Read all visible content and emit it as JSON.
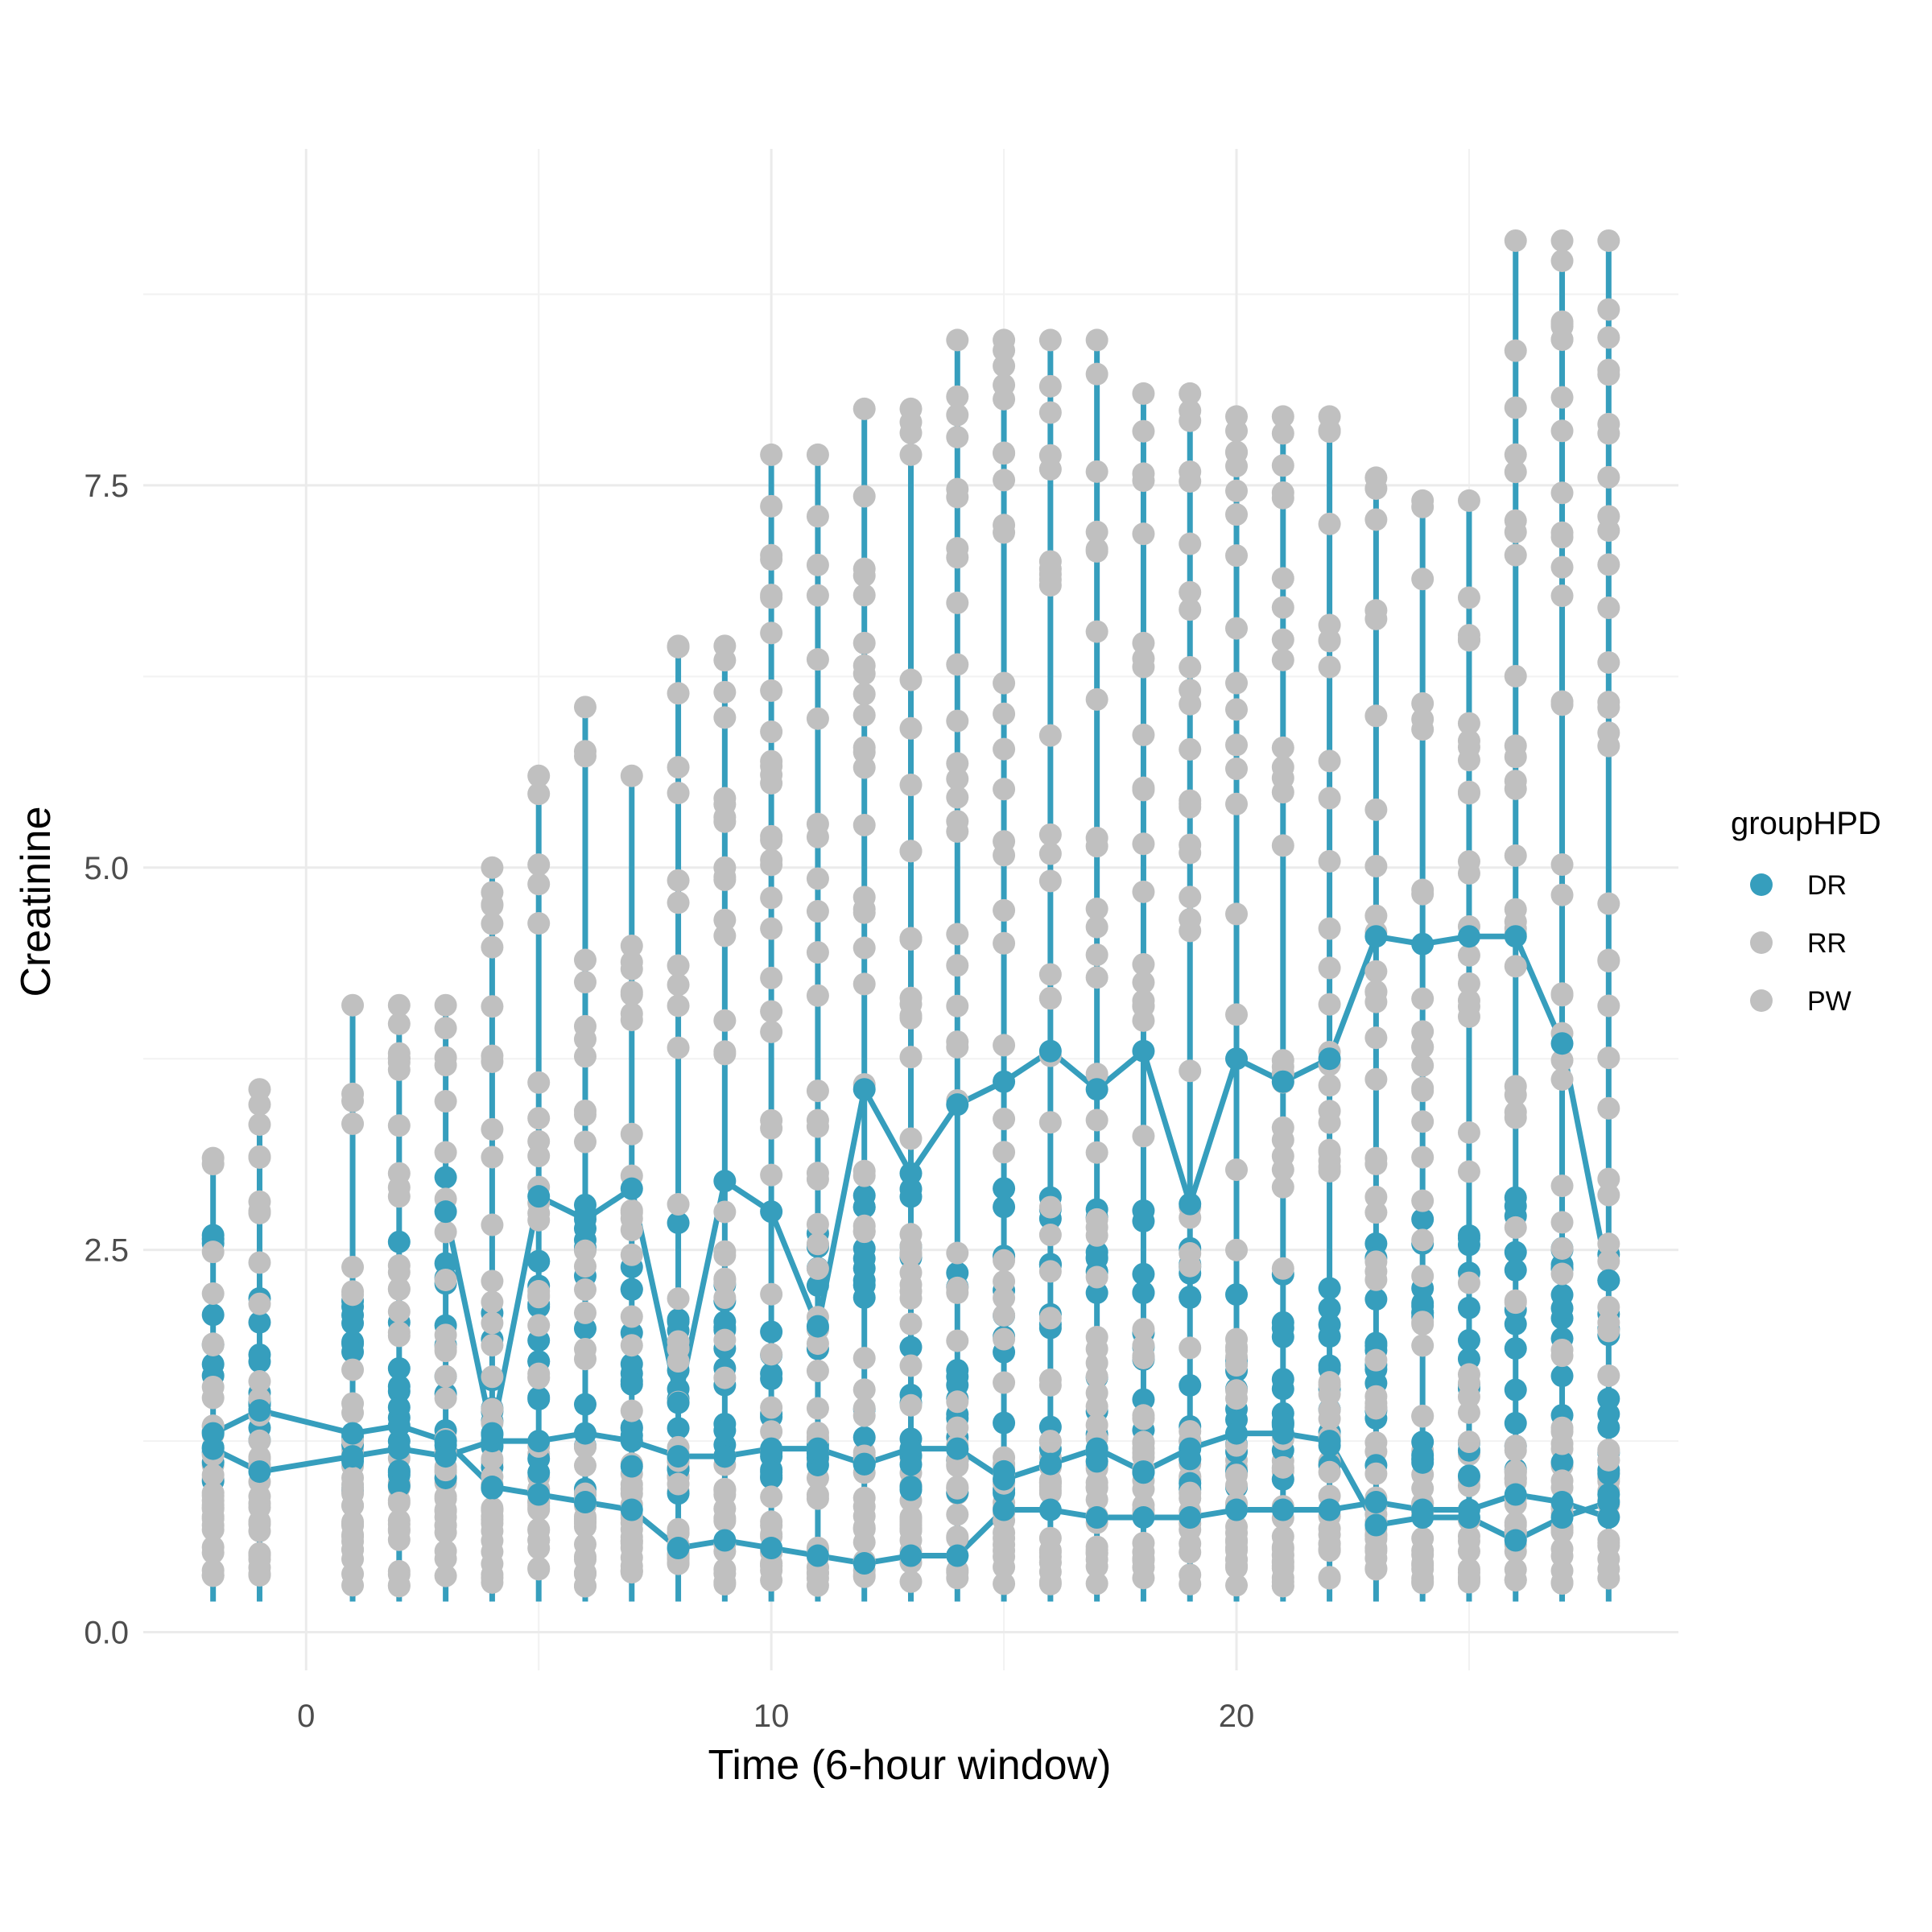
{
  "chart_data": {
    "type": "scatter",
    "xlabel": "Time (6-hour window)",
    "ylabel": "Creatinine",
    "xlim": [
      -3.5,
      29.5
    ],
    "ylim": [
      -0.25,
      9.7
    ],
    "x_ticks": [
      0,
      10,
      20
    ],
    "y_ticks": [
      0.0,
      2.5,
      5.0,
      7.5
    ],
    "y_tick_labels": [
      "0.0",
      "2.5",
      "5.0",
      "7.5"
    ],
    "grid": true,
    "legend": {
      "title": "groupHPD",
      "position": "right",
      "entries": [
        {
          "label": "DR",
          "color": "#369EBD"
        },
        {
          "label": "RR",
          "color": "#C0C0C0"
        },
        {
          "label": "PW",
          "color": "#C0C0C0"
        }
      ]
    },
    "colors": {
      "DR": "#369EBD",
      "RR": "#C0C0C0",
      "PW": "#C0C0C0"
    },
    "time_points": [
      -2,
      -1,
      1,
      2,
      3,
      4,
      5,
      6,
      7,
      8,
      9,
      10,
      11,
      12,
      13,
      14,
      15,
      16,
      17,
      18,
      19,
      20,
      21,
      22,
      23,
      24,
      25,
      26,
      27,
      28
    ],
    "column_max": [
      {
        "x": -2,
        "y": 3.1
      },
      {
        "x": -1,
        "y": 3.55
      },
      {
        "x": 1,
        "y": 4.1
      },
      {
        "x": 2,
        "y": 4.1
      },
      {
        "x": 3,
        "y": 4.1
      },
      {
        "x": 4,
        "y": 5.0
      },
      {
        "x": 5,
        "y": 5.6
      },
      {
        "x": 6,
        "y": 6.05
      },
      {
        "x": 7,
        "y": 5.6
      },
      {
        "x": 8,
        "y": 6.45
      },
      {
        "x": 9,
        "y": 6.45
      },
      {
        "x": 10,
        "y": 7.7
      },
      {
        "x": 11,
        "y": 7.7
      },
      {
        "x": 12,
        "y": 8.0
      },
      {
        "x": 13,
        "y": 8.0
      },
      {
        "x": 14,
        "y": 8.45
      },
      {
        "x": 15,
        "y": 8.45
      },
      {
        "x": 16,
        "y": 8.45
      },
      {
        "x": 17,
        "y": 8.45
      },
      {
        "x": 18,
        "y": 8.1
      },
      {
        "x": 19,
        "y": 8.1
      },
      {
        "x": 20,
        "y": 7.95
      },
      {
        "x": 21,
        "y": 7.95
      },
      {
        "x": 22,
        "y": 7.95
      },
      {
        "x": 23,
        "y": 7.55
      },
      {
        "x": 24,
        "y": 7.4
      },
      {
        "x": 25,
        "y": 7.4
      },
      {
        "x": 26,
        "y": 9.1
      },
      {
        "x": 27,
        "y": 9.1
      },
      {
        "x": 28,
        "y": 9.1
      }
    ],
    "column_min": 0.2,
    "series": [
      {
        "name": "DR",
        "x": [
          -2,
          -1,
          1,
          2,
          3,
          4,
          5,
          6,
          7,
          8,
          9,
          10,
          11,
          12,
          13,
          14,
          15,
          16,
          17,
          18,
          19,
          20,
          21,
          22,
          23,
          24,
          25,
          26,
          27,
          28
        ],
        "y": [
          1.3,
          1.45,
          1.3,
          1.35,
          1.25,
          0.95,
          0.9,
          0.85,
          0.8,
          0.55,
          0.6,
          0.55,
          0.5,
          0.45,
          0.5,
          0.5,
          0.8,
          0.8,
          0.75,
          0.75,
          0.75,
          0.8,
          0.8,
          0.8,
          0.85,
          0.8,
          0.8,
          0.9,
          0.85,
          0.75
        ]
      },
      {
        "name": "DR",
        "x": [
          -2,
          -1,
          1,
          2,
          3,
          4,
          5,
          6,
          7,
          8,
          9,
          10,
          11,
          12,
          13,
          14,
          15,
          16,
          17,
          18,
          19,
          20,
          21,
          22,
          23,
          24,
          25,
          26,
          27,
          28
        ],
        "y": [
          1.2,
          1.05,
          1.15,
          1.2,
          1.15,
          1.25,
          1.25,
          1.3,
          1.25,
          1.15,
          1.15,
          1.2,
          1.2,
          1.1,
          1.2,
          1.2,
          1.0,
          1.1,
          1.2,
          1.05,
          1.2,
          1.3,
          1.3,
          1.25,
          0.7,
          0.75,
          0.75,
          0.6,
          0.75,
          0.85
        ]
      },
      {
        "name": "DR",
        "x": [
          3,
          4,
          5,
          6,
          7,
          8,
          9,
          10,
          11,
          12,
          13,
          14,
          15,
          16,
          17,
          18,
          19,
          20,
          21,
          22,
          23,
          24,
          25,
          26,
          27,
          28
        ],
        "y": [
          2.75,
          1.3,
          2.85,
          2.7,
          2.9,
          1.5,
          2.95,
          2.75,
          2.0,
          3.55,
          3.0,
          3.45,
          3.6,
          3.8,
          3.55,
          3.8,
          2.8,
          3.75,
          3.6,
          3.75,
          4.55,
          4.5,
          4.55,
          4.55,
          3.85,
          2.3
        ]
      }
    ]
  }
}
